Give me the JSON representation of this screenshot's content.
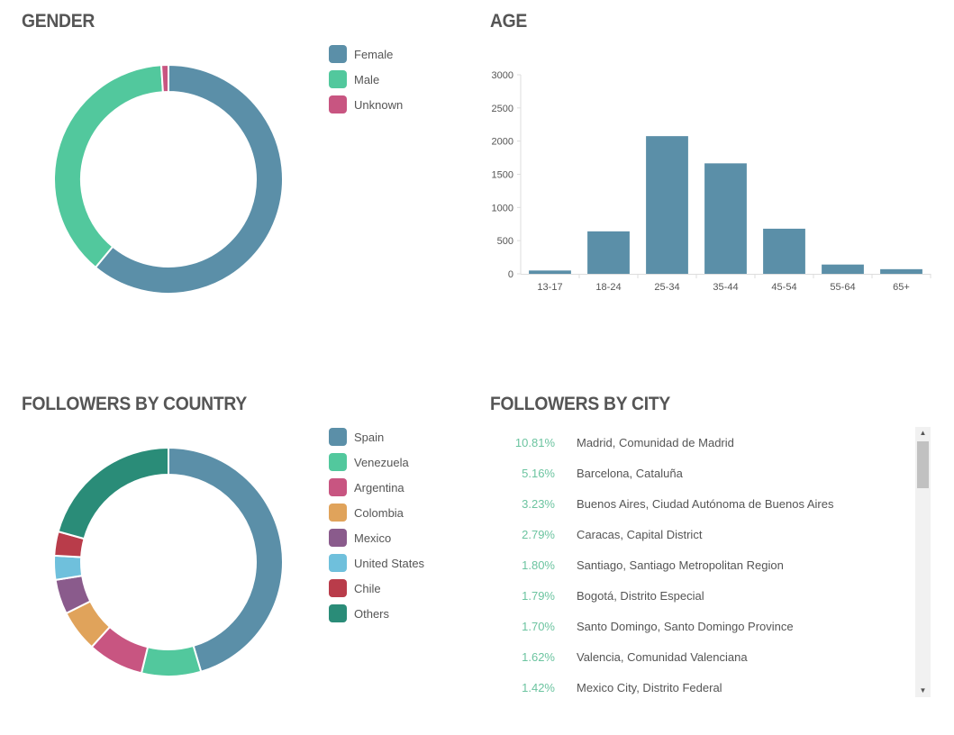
{
  "gender": {
    "title": "GENDER",
    "legend": [
      {
        "label": "Female",
        "color": "#5b8fa8"
      },
      {
        "label": "Male",
        "color": "#52c89d"
      },
      {
        "label": "Unknown",
        "color": "#c85581"
      }
    ]
  },
  "age": {
    "title": "AGE"
  },
  "country": {
    "title": "FOLLOWERS BY COUNTRY",
    "legend": [
      {
        "label": "Spain",
        "color": "#5b8fa8"
      },
      {
        "label": "Venezuela",
        "color": "#52c89d"
      },
      {
        "label": "Argentina",
        "color": "#c85581"
      },
      {
        "label": "Colombia",
        "color": "#e0a35b"
      },
      {
        "label": "Mexico",
        "color": "#8a5b8c"
      },
      {
        "label": "United States",
        "color": "#6fc0dc"
      },
      {
        "label": "Chile",
        "color": "#b93c4a"
      },
      {
        "label": "Others",
        "color": "#2a8c78"
      }
    ]
  },
  "city": {
    "title": "FOLLOWERS BY CITY",
    "rows": [
      {
        "pct": "10.81%",
        "name": "Madrid, Comunidad de Madrid"
      },
      {
        "pct": "5.16%",
        "name": "Barcelona, Cataluña"
      },
      {
        "pct": "3.23%",
        "name": "Buenos Aires, Ciudad Autónoma de Buenos Aires"
      },
      {
        "pct": "2.79%",
        "name": "Caracas, Capital District"
      },
      {
        "pct": "1.80%",
        "name": "Santiago, Santiago Metropolitan Region"
      },
      {
        "pct": "1.79%",
        "name": "Bogotá, Distrito Especial"
      },
      {
        "pct": "1.70%",
        "name": "Santo Domingo, Santo Domingo Province"
      },
      {
        "pct": "1.62%",
        "name": "Valencia, Comunidad Valenciana"
      },
      {
        "pct": "1.42%",
        "name": "Mexico City, Distrito Federal"
      }
    ],
    "scroll_up_icon": "triangle-up",
    "scroll_down_icon": "triangle-down"
  },
  "chart_data": [
    {
      "type": "pie",
      "title": "GENDER",
      "donut": true,
      "categories": [
        "Female",
        "Male",
        "Unknown"
      ],
      "values": [
        61,
        38,
        1
      ],
      "colors": [
        "#5b8fa8",
        "#52c89d",
        "#c85581"
      ],
      "legend": "right"
    },
    {
      "type": "bar",
      "title": "AGE",
      "categories": [
        "13-17",
        "18-24",
        "25-34",
        "35-44",
        "45-54",
        "55-64",
        "65+"
      ],
      "values": [
        50,
        640,
        2075,
        1665,
        680,
        140,
        70
      ],
      "ylim": [
        0,
        3000
      ],
      "yticks": [
        0,
        500,
        1000,
        1500,
        2000,
        2500,
        3000
      ],
      "color": "#5b8fa8",
      "grid": false
    },
    {
      "type": "pie",
      "title": "FOLLOWERS BY COUNTRY",
      "donut": true,
      "categories": [
        "Spain",
        "Venezuela",
        "Argentina",
        "Colombia",
        "Mexico",
        "United States",
        "Chile",
        "Others"
      ],
      "values": [
        45.4,
        8.4,
        7.9,
        5.9,
        4.9,
        3.4,
        3.4,
        20.7
      ],
      "colors": [
        "#5b8fa8",
        "#52c89d",
        "#c85581",
        "#e0a35b",
        "#8a5b8c",
        "#6fc0dc",
        "#b93c4a",
        "#2a8c78"
      ],
      "legend": "right"
    }
  ]
}
